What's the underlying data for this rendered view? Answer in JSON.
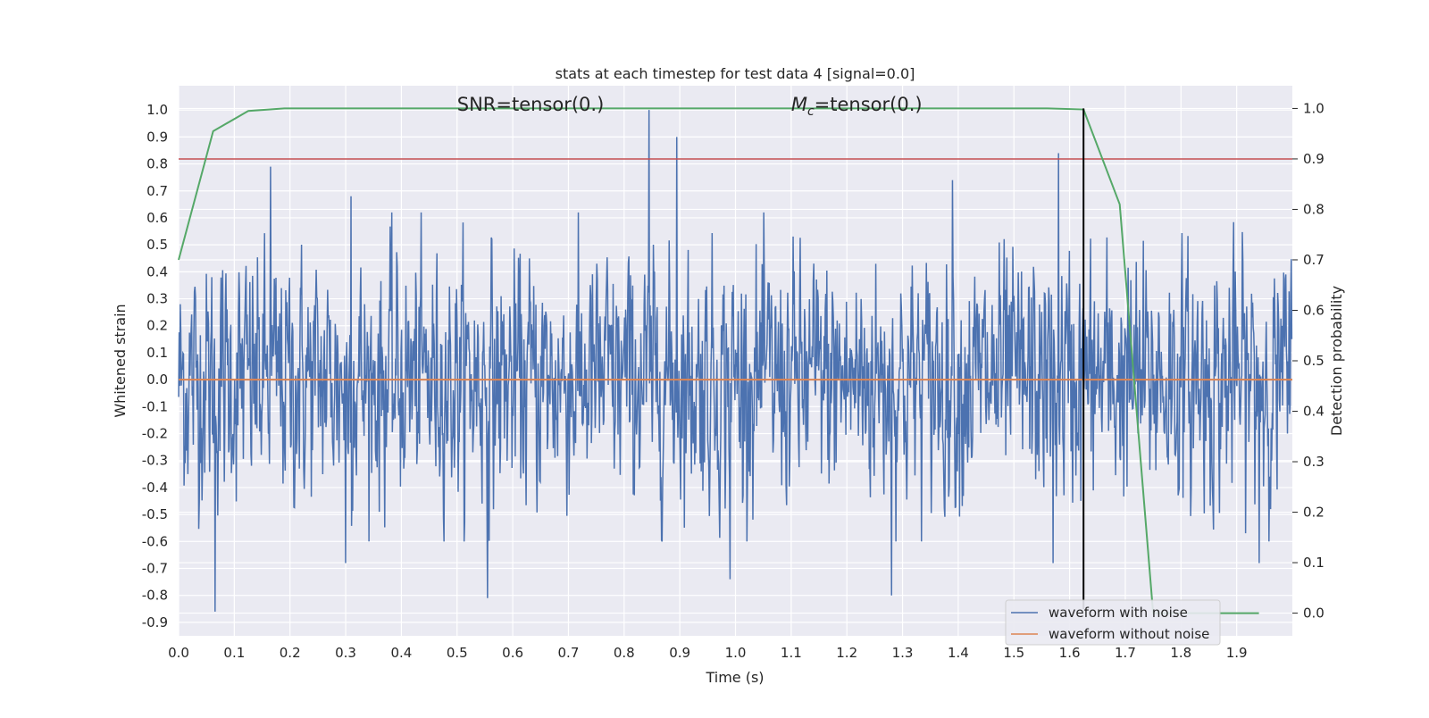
{
  "chart_data": {
    "type": "line",
    "title": "stats at each timestep for test data 4 [signal=0.0]",
    "xlabel": "Time (s)",
    "ylabel_left": "Whitened strain",
    "ylabel_right": "Detection probability",
    "xlim": [
      0.0,
      2.0
    ],
    "ylim_left": [
      -0.95,
      1.09
    ],
    "ylim_right": [
      -0.045,
      1.045
    ],
    "x_ticks": [
      "0.0",
      "0.1",
      "0.2",
      "0.3",
      "0.4",
      "0.5",
      "0.6",
      "0.7",
      "0.8",
      "0.9",
      "1.0",
      "1.1",
      "1.2",
      "1.3",
      "1.4",
      "1.5",
      "1.6",
      "1.7",
      "1.8",
      "1.9"
    ],
    "x_tick_values": [
      0.0,
      0.1,
      0.2,
      0.3,
      0.4,
      0.5,
      0.6,
      0.7,
      0.8,
      0.9,
      1.0,
      1.1,
      1.2,
      1.3,
      1.4,
      1.5,
      1.6,
      1.7,
      1.8,
      1.9
    ],
    "y_left_ticks": [
      "1.0",
      "0.9",
      "0.8",
      "0.7",
      "0.6",
      "0.5",
      "0.4",
      "0.3",
      "0.2",
      "0.1",
      "0.0",
      "-0.1",
      "-0.2",
      "-0.3",
      "-0.4",
      "-0.5",
      "-0.6",
      "-0.7",
      "-0.8",
      "-0.9"
    ],
    "y_left_tick_values": [
      1.0,
      0.9,
      0.8,
      0.7,
      0.6,
      0.5,
      0.4,
      0.3,
      0.2,
      0.1,
      0.0,
      -0.1,
      -0.2,
      -0.3,
      -0.4,
      -0.5,
      -0.6,
      -0.7,
      -0.8,
      -0.9
    ],
    "y_right_ticks": [
      "1.0",
      "0.9",
      "0.8",
      "0.7",
      "0.6",
      "0.5",
      "0.4",
      "0.3",
      "0.2",
      "0.1",
      "0.0"
    ],
    "y_right_tick_values": [
      1.0,
      0.9,
      0.8,
      0.7,
      0.6,
      0.5,
      0.4,
      0.3,
      0.2,
      0.1,
      0.0
    ],
    "annotations": [
      {
        "text": "SNR=tensor(0.)",
        "x": 0.5,
        "y": 1.0
      },
      {
        "text_main": "M",
        "text_sub": "c",
        "text_rest": "=tensor(0.)",
        "x": 1.1,
        "y": 1.0
      }
    ],
    "threshold_line": {
      "y_right": 0.9,
      "color": "#c44e52"
    },
    "detection_time_line": {
      "x": 1.625,
      "color": "#000000"
    },
    "series": [
      {
        "name": "waveform with noise",
        "color": "#4c72b0",
        "axis": "left",
        "kind": "noise",
        "samples": 2048,
        "amplitude_sd": 0.22,
        "peaks": [
          [
            0.065,
            -0.86
          ],
          [
            0.165,
            0.79
          ],
          [
            0.3,
            -0.68
          ],
          [
            0.31,
            0.68
          ],
          [
            0.555,
            -0.81
          ],
          [
            0.845,
            1.0
          ],
          [
            0.895,
            0.9
          ],
          [
            0.99,
            -0.74
          ],
          [
            1.28,
            -0.8
          ],
          [
            1.39,
            0.74
          ],
          [
            1.57,
            -0.68
          ],
          [
            1.58,
            0.84
          ],
          [
            1.94,
            -0.68
          ],
          [
            1.76,
            0.25
          ]
        ]
      },
      {
        "name": "waveform without noise",
        "color": "#dd8452",
        "axis": "left",
        "kind": "flat",
        "value": 0.0
      },
      {
        "name": "detection probability",
        "color": "#55a868",
        "axis": "right",
        "kind": "line",
        "x": [
          0.0,
          0.062,
          0.125,
          0.19,
          0.25,
          0.5,
          1.0,
          1.5,
          1.56,
          1.625,
          1.69,
          1.75,
          1.8,
          1.94
        ],
        "y": [
          0.7,
          0.955,
          0.995,
          1.0,
          1.0,
          1.0,
          1.0,
          1.0,
          1.0,
          0.998,
          0.81,
          0.0,
          0.0,
          0.0
        ]
      }
    ],
    "legend": {
      "placement": "lower-right",
      "entries": [
        "waveform with noise",
        "waveform without noise"
      ]
    },
    "grid": true,
    "background": "#eaeaf2"
  }
}
